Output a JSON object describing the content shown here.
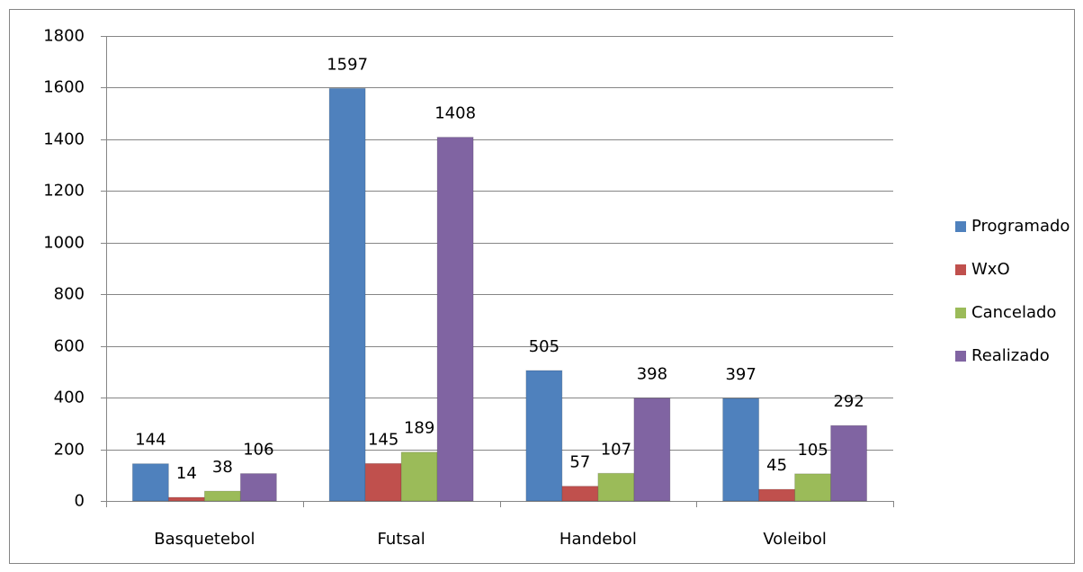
{
  "chart_data": {
    "type": "bar",
    "categories": [
      "Basquetebol",
      "Futsal",
      "Handebol",
      "Voleibol"
    ],
    "series": [
      {
        "name": "Programado",
        "color": "#4f81bd",
        "values": [
          144,
          1597,
          505,
          397
        ]
      },
      {
        "name": "WxO",
        "color": "#c0504d",
        "values": [
          14,
          145,
          57,
          45
        ]
      },
      {
        "name": "Cancelado",
        "color": "#9bbb59",
        "values": [
          38,
          189,
          107,
          105
        ]
      },
      {
        "name": "Realizado",
        "color": "#8064a2",
        "values": [
          106,
          1408,
          398,
          292
        ]
      }
    ],
    "ylim": [
      0,
      1800
    ],
    "yticks": [
      0,
      200,
      400,
      600,
      800,
      1000,
      1200,
      1400,
      1600,
      1800
    ],
    "grid": true,
    "legend": "right"
  }
}
